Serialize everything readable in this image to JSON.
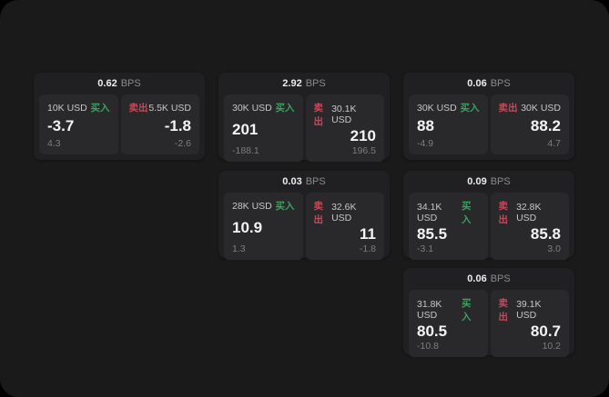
{
  "labels": {
    "bps_unit": "BPS",
    "buy": "买入",
    "sell": "卖出"
  },
  "colors": {
    "buy_green": "#3ba15f",
    "sell_red": "#c44a5a",
    "surface": "#1a1a1b",
    "card": "#202022",
    "panel": "#29292b"
  },
  "cards": [
    {
      "bps": "0.62",
      "buy": {
        "amount": "10K USD",
        "price": "-3.7",
        "change": "4.3"
      },
      "sell": {
        "amount": "5.5K USD",
        "price": "-1.8",
        "change": "-2.6"
      }
    },
    {
      "bps": "2.92",
      "buy": {
        "amount": "30K USD",
        "price": "201",
        "change": "-188.1"
      },
      "sell": {
        "amount": "30.1K USD",
        "price": "210",
        "change": "196.5"
      }
    },
    {
      "bps": "0.06",
      "buy": {
        "amount": "30K USD",
        "price": "88",
        "change": "-4.9"
      },
      "sell": {
        "amount": "30K USD",
        "price": "88.2",
        "change": "4.7"
      }
    },
    {
      "bps": "0.03",
      "buy": {
        "amount": "28K USD",
        "price": "10.9",
        "change": "1.3"
      },
      "sell": {
        "amount": "32.6K USD",
        "price": "11",
        "change": "-1.8"
      }
    },
    {
      "bps": "0.09",
      "buy": {
        "amount": "34.1K USD",
        "price": "85.5",
        "change": "-3.1"
      },
      "sell": {
        "amount": "32.8K USD",
        "price": "85.8",
        "change": "3.0"
      }
    },
    {
      "bps": "0.06",
      "buy": {
        "amount": "31.8K USD",
        "price": "80.5",
        "change": "-10.8"
      },
      "sell": {
        "amount": "39.1K USD",
        "price": "80.7",
        "change": "10.2"
      }
    }
  ]
}
